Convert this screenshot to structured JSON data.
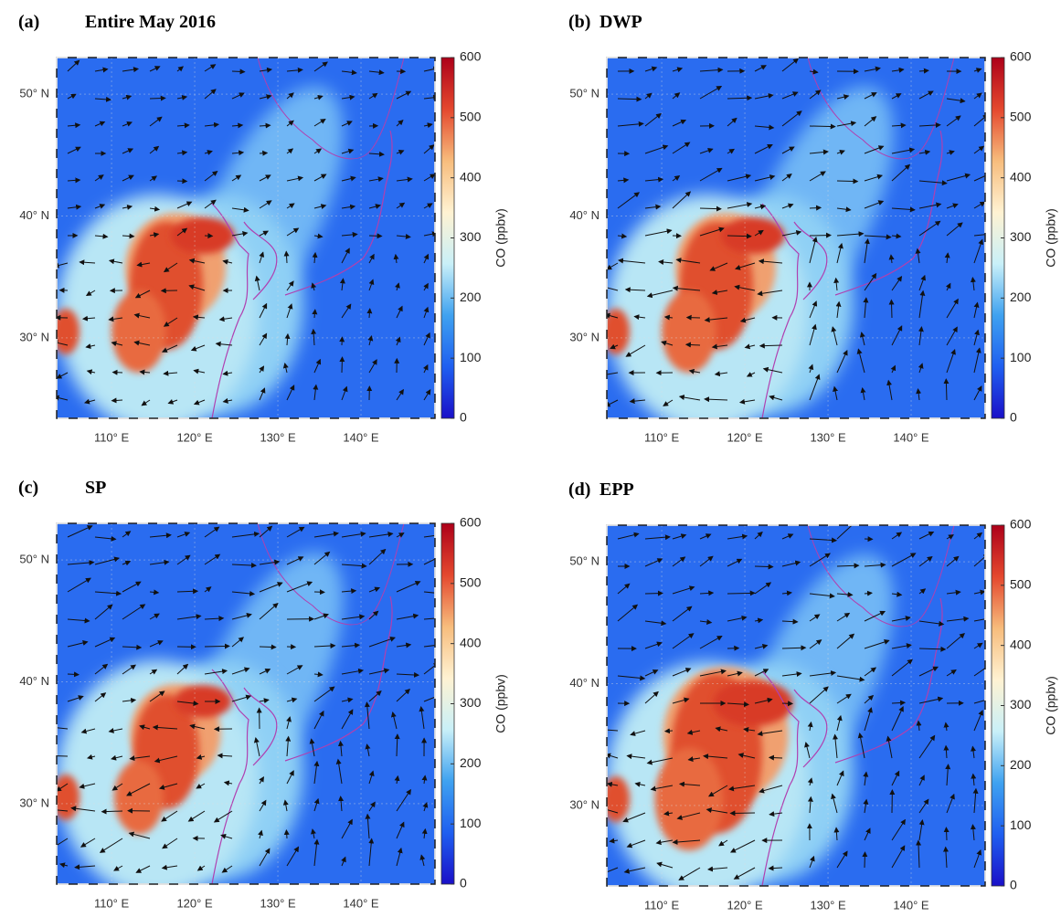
{
  "panels": [
    {
      "label": "(a)",
      "title": "Entire May 2016"
    },
    {
      "label": "(b)",
      "title": "DWP"
    },
    {
      "label": "(c)",
      "title": "SP"
    },
    {
      "label": "(d)",
      "title": "EPP"
    }
  ],
  "xlim": [
    103.4,
    148.9
  ],
  "ylim": [
    23.4,
    53
  ],
  "xticks": [
    {
      "value": 110,
      "label": "110° E"
    },
    {
      "value": 120,
      "label": "120° E"
    },
    {
      "value": 130,
      "label": "130° E"
    },
    {
      "value": 140,
      "label": "140° E"
    }
  ],
  "yticks": [
    {
      "value": 30,
      "label": "30° N"
    },
    {
      "value": 40,
      "label": "40° N"
    },
    {
      "value": 50,
      "label": "50° N"
    }
  ],
  "colorbar": {
    "label": "CO (ppbv)",
    "lim": [
      0,
      600
    ],
    "ticks": [
      0,
      100,
      200,
      300,
      400,
      500,
      600
    ],
    "colormap": [
      "#1a10c8",
      "#1f5ff0",
      "#3fa2f0",
      "#c9f0f8",
      "#fff2d2",
      "#f7bc7c",
      "#e4482e",
      "#ad0019"
    ]
  }
}
